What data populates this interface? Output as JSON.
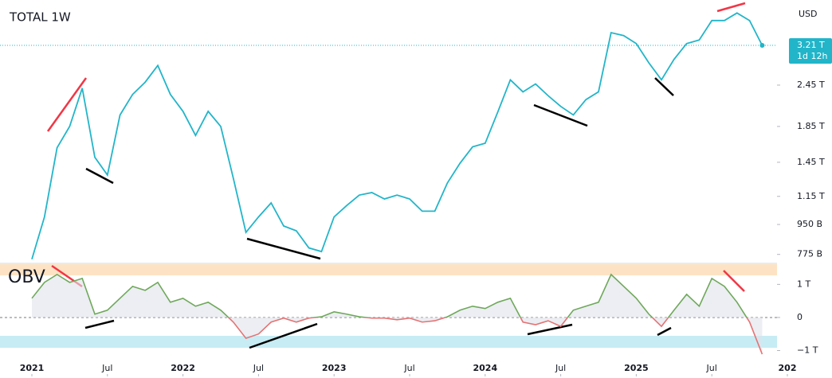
{
  "chart_data": [
    {
      "type": "line",
      "title": "TOTAL 1W",
      "currency": "USD",
      "last_value_label": "3.21 T",
      "countdown": "1d 12h",
      "log_scale": true,
      "color": "#22b5c9",
      "x": [
        "2021-01",
        "2021-02",
        "2021-03",
        "2021-04",
        "2021-05",
        "2021-06",
        "2021-07",
        "2021-08",
        "2021-09",
        "2021-10",
        "2021-11",
        "2021-12",
        "2022-01",
        "2022-02",
        "2022-03",
        "2022-04",
        "2022-05",
        "2022-06",
        "2022-07",
        "2022-08",
        "2022-09",
        "2022-10",
        "2022-11",
        "2022-12",
        "2023-01",
        "2023-02",
        "2023-03",
        "2023-04",
        "2023-05",
        "2023-06",
        "2023-07",
        "2023-08",
        "2023-09",
        "2023-10",
        "2023-11",
        "2023-12",
        "2024-01",
        "2024-02",
        "2024-03",
        "2024-04",
        "2024-05",
        "2024-06",
        "2024-07",
        "2024-08",
        "2024-09",
        "2024-10",
        "2024-11",
        "2024-12",
        "2025-01",
        "2025-02",
        "2025-03",
        "2025-04",
        "2025-05",
        "2025-06",
        "2025-07",
        "2025-08",
        "2025-09",
        "2025-10",
        "2025-11"
      ],
      "series": [
        {
          "name": "TOTAL",
          "color": "#22b5c9",
          "values": [
            0.75,
            1.0,
            1.6,
            1.85,
            2.4,
            1.5,
            1.33,
            2.0,
            2.3,
            2.5,
            2.8,
            2.3,
            2.05,
            1.74,
            2.05,
            1.85,
            1.3,
            0.9,
            1.0,
            1.1,
            0.94,
            0.91,
            0.81,
            0.79,
            1.0,
            1.08,
            1.16,
            1.18,
            1.13,
            1.16,
            1.13,
            1.04,
            1.04,
            1.26,
            1.44,
            1.61,
            1.65,
            2.04,
            2.54,
            2.34,
            2.47,
            2.28,
            2.12,
            2.0,
            2.22,
            2.34,
            3.5,
            3.43,
            3.25,
            2.85,
            2.54,
            2.92,
            3.25,
            3.33,
            3.8,
            3.8,
            4.0,
            3.8,
            3.21
          ]
        }
      ],
      "ylim": [
        0.733,
        4.37
      ],
      "yticks": [
        {
          "value": 2.45,
          "label": "2.45 T"
        },
        {
          "value": 1.85,
          "label": "1.85 T"
        },
        {
          "value": 1.45,
          "label": "1.45 T"
        },
        {
          "value": 1.15,
          "label": "1.15 T"
        },
        {
          "value": 0.95,
          "label": "950 B"
        },
        {
          "value": 0.775,
          "label": "775 B"
        }
      ],
      "xticks": [
        {
          "value": "2021-01",
          "label": "2021"
        },
        {
          "value": "2021-07",
          "label": "Jul"
        },
        {
          "value": "2022-01",
          "label": "2022"
        },
        {
          "value": "2022-07",
          "label": "Jul"
        },
        {
          "value": "2023-01",
          "label": "2023"
        },
        {
          "value": "2023-07",
          "label": "Jul"
        },
        {
          "value": "2024-01",
          "label": "2024"
        },
        {
          "value": "2024-07",
          "label": "Jul"
        },
        {
          "value": "2025-01",
          "label": "2025"
        },
        {
          "value": "2025-07",
          "label": "Jul"
        },
        {
          "value": "2026-01",
          "label": "202"
        }
      ]
    },
    {
      "type": "line",
      "title": "OBV",
      "x": [
        "2021-01",
        "2021-02",
        "2021-03",
        "2021-04",
        "2021-05",
        "2021-06",
        "2021-07",
        "2021-08",
        "2021-09",
        "2021-10",
        "2021-11",
        "2021-12",
        "2022-01",
        "2022-02",
        "2022-03",
        "2022-04",
        "2022-05",
        "2022-06",
        "2022-07",
        "2022-08",
        "2022-09",
        "2022-10",
        "2022-11",
        "2022-12",
        "2023-01",
        "2023-02",
        "2023-03",
        "2023-04",
        "2023-05",
        "2023-06",
        "2023-07",
        "2023-08",
        "2023-09",
        "2023-10",
        "2023-11",
        "2023-12",
        "2024-01",
        "2024-02",
        "2024-03",
        "2024-04",
        "2024-05",
        "2024-06",
        "2024-07",
        "2024-08",
        "2024-09",
        "2024-10",
        "2024-11",
        "2024-12",
        "2025-01",
        "2025-02",
        "2025-03",
        "2025-04",
        "2025-05",
        "2025-06",
        "2025-07",
        "2025-08",
        "2025-09",
        "2025-10",
        "2025-11"
      ],
      "series": [
        {
          "name": "OBV",
          "color": "#6fa85a",
          "negative_color": "#e57373",
          "values": [
            0.58,
            1.06,
            1.3,
            1.06,
            1.18,
            0.1,
            0.22,
            0.58,
            0.94,
            0.82,
            1.06,
            0.46,
            0.58,
            0.34,
            0.46,
            0.22,
            -0.14,
            -0.63,
            -0.5,
            -0.14,
            -0.02,
            -0.14,
            -0.02,
            0.02,
            0.17,
            0.1,
            0.02,
            -0.02,
            -0.02,
            -0.07,
            -0.02,
            -0.14,
            -0.1,
            0.02,
            0.22,
            0.34,
            0.27,
            0.46,
            0.58,
            -0.14,
            -0.22,
            -0.1,
            -0.27,
            0.22,
            0.34,
            0.46,
            1.3,
            0.94,
            0.58,
            0.1,
            -0.27,
            0.22,
            0.7,
            0.34,
            1.18,
            0.94,
            0.46,
            -0.14,
            -1.11
          ]
        }
      ],
      "ylim": [
        -1.71,
        1.61
      ],
      "yticks": [
        {
          "value": 1,
          "label": "1 T"
        },
        0,
        {
          "value": -1,
          "label": "−1 T"
        }
      ]
    }
  ]
}
